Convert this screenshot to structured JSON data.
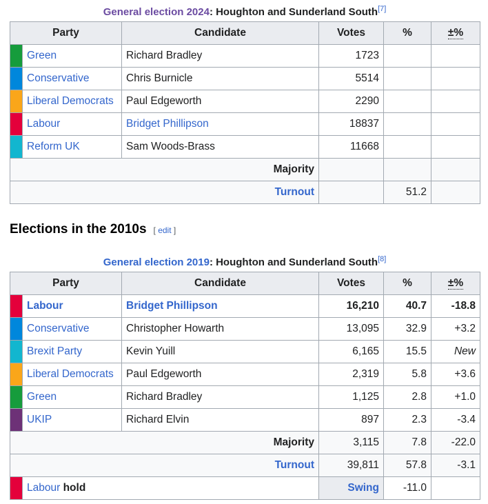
{
  "t1": {
    "caption": {
      "link": "General election 2024",
      "rest": ": Houghton and Sunderland South",
      "ref": "[7]"
    },
    "headers": {
      "party": "Party",
      "candidate": "Candidate",
      "votes": "Votes",
      "pct": "%",
      "change": "±%"
    },
    "rows": [
      {
        "color": "#169c3c",
        "party": "Green",
        "candidate": "Richard Bradley",
        "votes": "1723",
        "pct": "",
        "change": ""
      },
      {
        "color": "#0087dc",
        "party": "Conservative",
        "candidate": "Chris Burnicle",
        "votes": "5514",
        "pct": "",
        "change": ""
      },
      {
        "color": "#faa61a",
        "party": "Liberal Democrats",
        "candidate": "Paul Edgeworth",
        "votes": "2290",
        "pct": "",
        "change": ""
      },
      {
        "color": "#e4003b",
        "party": "Labour",
        "candidate": "Bridget Phillipson",
        "votes": "18837",
        "pct": "",
        "change": ""
      },
      {
        "color": "#12b6cf",
        "party": "Reform UK",
        "candidate": "Sam Woods-Brass",
        "votes": "11668",
        "pct": "",
        "change": ""
      }
    ],
    "majority": {
      "label": "Majority",
      "votes": "",
      "pct": "",
      "change": ""
    },
    "turnout": {
      "label": "Turnout",
      "votes": "",
      "pct": "51.2",
      "change": ""
    }
  },
  "heading": {
    "title": "Elections in the 2010s",
    "open": "[ ",
    "edit": "edit",
    "close": " ]"
  },
  "t2": {
    "caption": {
      "link": "General election 2019",
      "rest": ": Houghton and Sunderland South",
      "ref": "[8]"
    },
    "headers": {
      "party": "Party",
      "candidate": "Candidate",
      "votes": "Votes",
      "pct": "%",
      "change": "±%"
    },
    "rows": [
      {
        "color": "#e4003b",
        "party": "Labour",
        "candidate": "Bridget Phillipson",
        "votes": "16,210",
        "pct": "40.7",
        "change": "-18.8"
      },
      {
        "color": "#0087dc",
        "party": "Conservative",
        "candidate": "Christopher Howarth",
        "votes": "13,095",
        "pct": "32.9",
        "change": "+3.2"
      },
      {
        "color": "#12b6cf",
        "party": "Brexit Party",
        "candidate": "Kevin Yuill",
        "votes": "6,165",
        "pct": "15.5",
        "change": "New"
      },
      {
        "color": "#faa61a",
        "party": "Liberal Democrats",
        "candidate": "Paul Edgeworth",
        "votes": "2,319",
        "pct": "5.8",
        "change": "+3.6"
      },
      {
        "color": "#169c3c",
        "party": "Green",
        "candidate": "Richard Bradley",
        "votes": "1,125",
        "pct": "2.8",
        "change": "+1.0"
      },
      {
        "color": "#6d3177",
        "party": "UKIP",
        "candidate": "Richard Elvin",
        "votes": "897",
        "pct": "2.3",
        "change": "-3.4"
      }
    ],
    "majority": {
      "label": "Majority",
      "votes": "3,115",
      "pct": "7.8",
      "change": "-22.0"
    },
    "turnout": {
      "label": "Turnout",
      "votes": "39,811",
      "pct": "57.8",
      "change": "-3.1"
    },
    "hold": {
      "color": "#e4003b",
      "party": "Labour",
      "text": " hold",
      "swing_label": "Swing",
      "swing": "-11.0"
    }
  }
}
